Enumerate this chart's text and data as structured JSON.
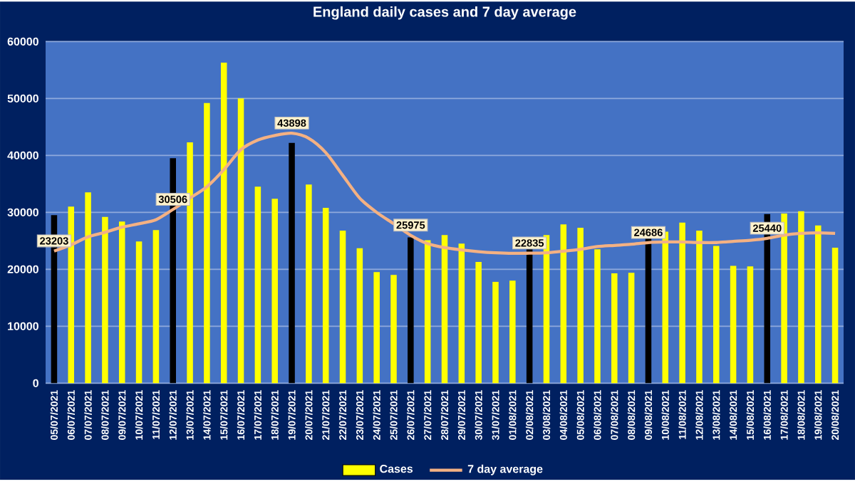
{
  "chart_data": {
    "type": "bar",
    "title": "England daily cases and 7 day average",
    "categories": [
      "05/07/2021",
      "06/07/2021",
      "07/07/2021",
      "08/07/2021",
      "09/07/2021",
      "10/07/2021",
      "11/07/2021",
      "12/07/2021",
      "13/07/2021",
      "14/07/2021",
      "15/07/2021",
      "16/07/2021",
      "17/07/2021",
      "18/07/2021",
      "19/07/2021",
      "20/07/2021",
      "21/07/2021",
      "22/07/2021",
      "23/07/2021",
      "24/07/2021",
      "25/07/2021",
      "26/07/2021",
      "27/07/2021",
      "28/07/2021",
      "29/07/2021",
      "30/07/2021",
      "31/07/2021",
      "01/08/2021",
      "02/08/2021",
      "03/08/2021",
      "04/08/2021",
      "05/08/2021",
      "06/08/2021",
      "07/08/2021",
      "08/08/2021",
      "09/08/2021",
      "10/08/2021",
      "11/08/2021",
      "12/08/2021",
      "13/08/2021",
      "14/08/2021",
      "15/08/2021",
      "16/08/2021",
      "17/08/2021",
      "18/08/2021",
      "19/08/2021",
      "20/08/2021"
    ],
    "series": [
      {
        "name": "Cases",
        "color": "#ffff00",
        "values": [
          29500,
          31000,
          33500,
          29200,
          28400,
          24900,
          26900,
          39500,
          42300,
          49200,
          56300,
          50000,
          34500,
          32400,
          42200,
          34900,
          30800,
          26800,
          23700,
          19500,
          19000,
          25600,
          25100,
          26000,
          24500,
          21300,
          17800,
          18000,
          23500,
          26000,
          27900,
          27300,
          23500,
          19300,
          19400,
          25600,
          26600,
          28200,
          26800,
          24100,
          20600,
          20500,
          29700,
          29800,
          30200,
          27700,
          23800
        ],
        "colors": [
          "#000000",
          "#ffff00",
          "#ffff00",
          "#ffff00",
          "#ffff00",
          "#ffff00",
          "#ffff00",
          "#000000",
          "#ffff00",
          "#ffff00",
          "#ffff00",
          "#ffff00",
          "#ffff00",
          "#ffff00",
          "#000000",
          "#ffff00",
          "#ffff00",
          "#ffff00",
          "#ffff00",
          "#ffff00",
          "#ffff00",
          "#000000",
          "#ffff00",
          "#ffff00",
          "#ffff00",
          "#ffff00",
          "#ffff00",
          "#ffff00",
          "#000000",
          "#ffff00",
          "#ffff00",
          "#ffff00",
          "#ffff00",
          "#ffff00",
          "#ffff00",
          "#000000",
          "#ffff00",
          "#ffff00",
          "#ffff00",
          "#ffff00",
          "#ffff00",
          "#ffff00",
          "#000000",
          "#ffff00",
          "#ffff00",
          "#ffff00",
          "#ffff00"
        ]
      },
      {
        "name": "7 day average",
        "type": "line",
        "color": "#f4b183",
        "values": [
          23203,
          24300,
          25700,
          26500,
          27400,
          28000,
          28700,
          30506,
          32500,
          34500,
          37500,
          41000,
          42700,
          43500,
          43898,
          43000,
          40500,
          36500,
          32500,
          30000,
          28000,
          25975,
          24500,
          23800,
          23400,
          23100,
          22900,
          22800,
          22835,
          22900,
          23200,
          23500,
          24000,
          24200,
          24400,
          24686,
          24800,
          24800,
          24700,
          24700,
          24900,
          25100,
          25440,
          26000,
          26300,
          26400,
          26300
        ],
        "value_labels": [
          "23203",
          null,
          null,
          null,
          null,
          null,
          null,
          "30506",
          null,
          null,
          null,
          null,
          null,
          null,
          "43898",
          null,
          null,
          null,
          null,
          null,
          null,
          "25975",
          null,
          null,
          null,
          null,
          null,
          null,
          "22835",
          null,
          null,
          null,
          null,
          null,
          null,
          "24686",
          null,
          null,
          null,
          null,
          null,
          null,
          "25440",
          null,
          null,
          null,
          null
        ]
      }
    ],
    "ylim": [
      0,
      60000
    ],
    "yticks": [
      0,
      10000,
      20000,
      30000,
      40000,
      50000,
      60000
    ],
    "grid": "y",
    "legend": "bottom"
  }
}
